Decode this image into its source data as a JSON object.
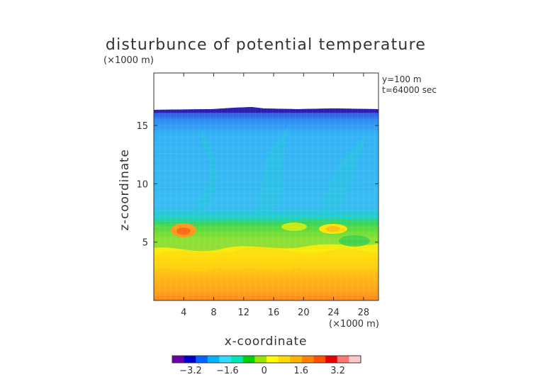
{
  "chart_data": {
    "type": "heatmap",
    "title": "disturbunce of potential temperature",
    "xlabel": "x-coordinate",
    "ylabel": "z-coordinate",
    "x_unit": "(×1000 m)",
    "y_unit": "(×1000 m)",
    "annotations": [
      "y=100 m",
      "t=64000 sec"
    ],
    "xlim": [
      0,
      30
    ],
    "ylim": [
      0,
      19.5
    ],
    "xticks": [
      4,
      8,
      12,
      16,
      20,
      24,
      28
    ],
    "yticks": [
      5,
      10,
      15
    ],
    "colorbar": {
      "range": [
        -4,
        4.2
      ],
      "ticks": [
        "−3.2",
        "−1.6",
        "0",
        "1.6",
        "3.2"
      ],
      "colors": [
        "#6a00a8",
        "#0000c8",
        "#0064ff",
        "#00b4ff",
        "#33dcff",
        "#00e6b4",
        "#00d200",
        "#96e600",
        "#ffff00",
        "#ffdc00",
        "#ffb400",
        "#ff8200",
        "#ff5000",
        "#e60000",
        "#ff7878",
        "#ffc8c8"
      ]
    },
    "grid": false,
    "legend": "bottom (colorbar)"
  }
}
